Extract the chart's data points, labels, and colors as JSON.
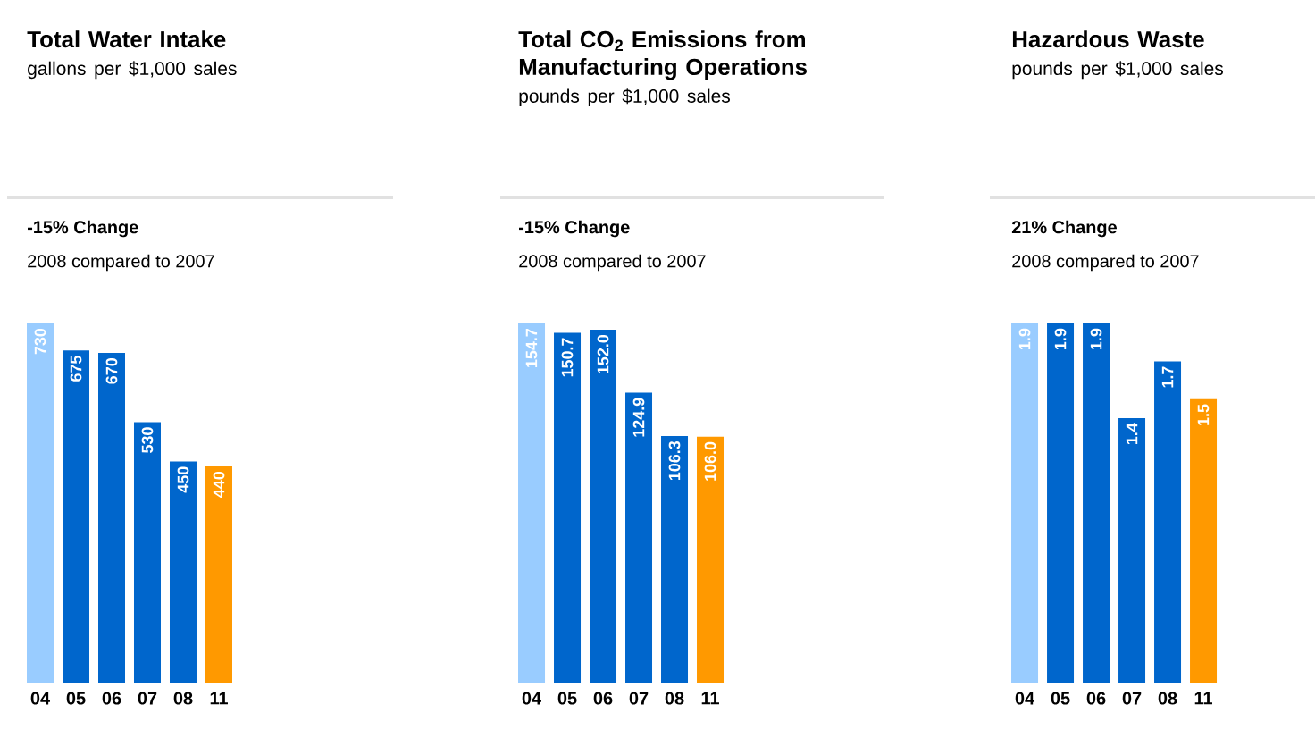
{
  "chart_data": [
    {
      "type": "bar",
      "title": "Total Water Intake",
      "subtitle": "gallons per $1,000 sales",
      "annotations": [
        "-15% Change",
        "2008 compared to 2007"
      ],
      "categories": [
        "04",
        "05",
        "06",
        "07",
        "08",
        "11"
      ],
      "values": [
        730,
        675,
        670,
        530,
        450,
        440
      ],
      "colors": [
        "#99ccff",
        "#0066cc",
        "#0066cc",
        "#0066cc",
        "#0066cc",
        "#ff9900"
      ],
      "value_labels": [
        "730",
        "675",
        "670",
        "530",
        "450",
        "440"
      ]
    },
    {
      "type": "bar",
      "title": "Total CO$_{2}$ Emissions from Manufacturing Operations",
      "subtitle": "pounds per $1,000 sales",
      "annotations": [
        "-15% Change",
        "2008 compared to 2007"
      ],
      "categories": [
        "04",
        "05",
        "06",
        "07",
        "08",
        "11"
      ],
      "values": [
        154.7,
        150.7,
        152.0,
        124.9,
        106.3,
        106.0
      ],
      "colors": [
        "#99ccff",
        "#0066cc",
        "#0066cc",
        "#0066cc",
        "#0066cc",
        "#ff9900"
      ],
      "value_labels": [
        "154.7",
        "150.7",
        "152.0",
        "124.9",
        "106.3",
        "106.0"
      ]
    },
    {
      "type": "bar",
      "title": "Hazardous Waste",
      "subtitle": "pounds per $1,000 sales",
      "annotations": [
        "21% Change",
        "2008 compared to 2007"
      ],
      "categories": [
        "04",
        "05",
        "06",
        "07",
        "08",
        "11"
      ],
      "values": [
        1.9,
        1.9,
        1.9,
        1.4,
        1.7,
        1.5
      ],
      "colors": [
        "#99ccff",
        "#0066cc",
        "#0066cc",
        "#0066cc",
        "#0066cc",
        "#ff9900"
      ],
      "value_labels": [
        "1.9",
        "1.9",
        "1.9",
        "1.4",
        "1.7",
        "1.5"
      ]
    }
  ]
}
